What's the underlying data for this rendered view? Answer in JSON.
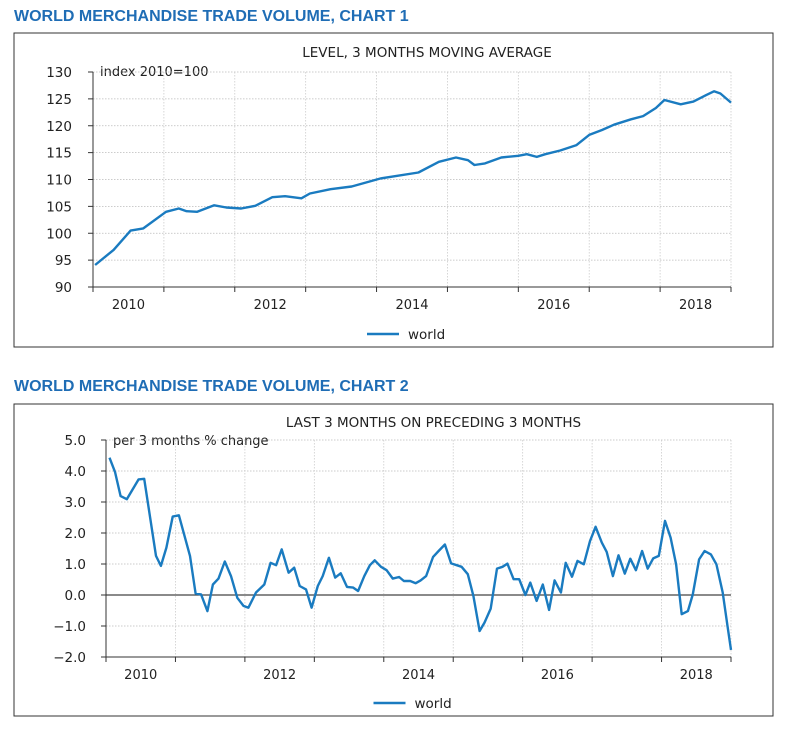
{
  "chart_data": [
    {
      "type": "line",
      "heading": "WORLD MERCHANDISE TRADE VOLUME, CHART 1",
      "title": "LEVEL, 3 MONTHS MOVING AVERAGE",
      "ylabel": "index 2010=100",
      "xlabel": "",
      "xlim": [
        2010,
        2019
      ],
      "ylim": [
        90,
        130
      ],
      "yticks": [
        130,
        125,
        120,
        115,
        110,
        105,
        100,
        95,
        90
      ],
      "ytick_labels": [
        "130",
        "125",
        "120",
        "115",
        "110",
        "105",
        "100",
        "95",
        "90"
      ],
      "xtick_labels": [
        "2010",
        "2012",
        "2014",
        "2016",
        "2018"
      ],
      "grid": true,
      "legend": {
        "position": "bottom-center",
        "entries": [
          "world"
        ]
      },
      "color": "#1a7bc0",
      "series": [
        {
          "name": "world",
          "x": [
            2010.03,
            2010.29,
            2010.53,
            2010.71,
            2011.03,
            2011.21,
            2011.32,
            2011.47,
            2011.71,
            2011.88,
            2012.09,
            2012.29,
            2012.53,
            2012.71,
            2012.94,
            2013.06,
            2013.35,
            2013.65,
            2014.06,
            2014.59,
            2014.88,
            2015.12,
            2015.29,
            2015.38,
            2015.53,
            2015.76,
            2016.0,
            2016.12,
            2016.26,
            2016.38,
            2016.59,
            2016.82,
            2017.0,
            2017.18,
            2017.35,
            2017.59,
            2017.76,
            2017.94,
            2018.06,
            2018.29,
            2018.47,
            2018.65,
            2018.76,
            2018.85,
            2019.0
          ],
          "y": [
            94.1,
            96.9,
            100.5,
            100.9,
            104.0,
            104.6,
            104.1,
            104.0,
            105.2,
            104.8,
            104.6,
            105.1,
            106.7,
            106.9,
            106.5,
            107.4,
            108.2,
            108.7,
            110.2,
            111.3,
            113.3,
            114.1,
            113.6,
            112.7,
            113.0,
            114.1,
            114.4,
            114.7,
            114.2,
            114.7,
            115.4,
            116.4,
            118.3,
            119.2,
            120.2,
            121.2,
            121.8,
            123.3,
            124.8,
            124.0,
            124.5,
            125.7,
            126.4,
            126.0,
            124.3
          ]
        }
      ]
    },
    {
      "type": "line",
      "heading": "WORLD MERCHANDISE TRADE VOLUME, CHART 2",
      "title": "LAST 3 MONTHS ON PRECEDING 3 MONTHS",
      "ylabel": "per 3 months % change",
      "xlabel": "",
      "xlim": [
        2010,
        2019
      ],
      "ylim": [
        -2,
        5
      ],
      "yticks": [
        5,
        4,
        3,
        2,
        1,
        0,
        -1,
        -2
      ],
      "ytick_labels": [
        "5.0",
        "4.0",
        "3.0",
        "2.0",
        "1.0",
        "0.0",
        "−1.0",
        "−2.0"
      ],
      "xtick_labels": [
        "2010",
        "2012",
        "2014",
        "2016",
        "2018"
      ],
      "grid": true,
      "legend": {
        "position": "bottom-center",
        "entries": [
          "world"
        ]
      },
      "color": "#1a7bc0",
      "series": [
        {
          "name": "world",
          "x": [
            2010.05,
            2010.13,
            2010.21,
            2010.3,
            2010.47,
            2010.55,
            2010.72,
            2010.79,
            2010.87,
            2010.96,
            2011.05,
            2011.21,
            2011.29,
            2011.37,
            2011.46,
            2011.54,
            2011.62,
            2011.71,
            2011.8,
            2011.89,
            2011.98,
            2012.05,
            2012.16,
            2012.28,
            2012.37,
            2012.45,
            2012.53,
            2012.63,
            2012.71,
            2012.79,
            2012.88,
            2012.96,
            2013.05,
            2013.12,
            2013.21,
            2013.3,
            2013.38,
            2013.47,
            2013.56,
            2013.63,
            2013.72,
            2013.8,
            2013.87,
            2013.96,
            2014.04,
            2014.13,
            2014.22,
            2014.29,
            2014.38,
            2014.46,
            2014.53,
            2014.61,
            2014.71,
            2014.79,
            2014.88,
            2014.97,
            2015.05,
            2015.12,
            2015.21,
            2015.29,
            2015.38,
            2015.45,
            2015.54,
            2015.63,
            2015.71,
            2015.78,
            2015.87,
            2015.95,
            2016.04,
            2016.11,
            2016.2,
            2016.29,
            2016.38,
            2016.46,
            2016.55,
            2016.62,
            2016.71,
            2016.79,
            2016.88,
            2016.97,
            2017.05,
            2017.14,
            2017.21,
            2017.3,
            2017.38,
            2017.47,
            2017.55,
            2017.63,
            2017.72,
            2017.8,
            2017.88,
            2017.96,
            2018.05,
            2018.13,
            2018.21,
            2018.29,
            2018.38,
            2018.45,
            2018.54,
            2018.62,
            2018.71,
            2018.79,
            2018.88,
            2018.95,
            2019.0
          ],
          "y": [
            4.43,
            3.97,
            3.19,
            3.09,
            3.73,
            3.75,
            1.26,
            0.94,
            1.53,
            2.53,
            2.57,
            1.26,
            0.05,
            0.02,
            -0.52,
            0.34,
            0.53,
            1.08,
            0.61,
            -0.09,
            -0.35,
            -0.41,
            0.08,
            0.34,
            1.04,
            0.96,
            1.47,
            0.72,
            0.88,
            0.29,
            0.18,
            -0.41,
            0.29,
            0.61,
            1.2,
            0.56,
            0.7,
            0.26,
            0.24,
            0.13,
            0.61,
            0.96,
            1.12,
            0.91,
            0.8,
            0.53,
            0.58,
            0.45,
            0.45,
            0.38,
            0.47,
            0.61,
            1.23,
            1.42,
            1.63,
            1.02,
            0.96,
            0.91,
            0.67,
            -0.03,
            -1.16,
            -0.89,
            -0.44,
            0.85,
            0.91,
            1.01,
            0.51,
            0.51,
            0.0,
            0.4,
            -0.19,
            0.34,
            -0.48,
            0.47,
            0.08,
            1.04,
            0.59,
            1.1,
            0.99,
            1.74,
            2.2,
            1.69,
            1.39,
            0.61,
            1.28,
            0.69,
            1.17,
            0.8,
            1.42,
            0.85,
            1.18,
            1.26,
            2.39,
            1.85,
            0.99,
            -0.62,
            -0.52,
            0.02,
            1.15,
            1.42,
            1.31,
            0.99,
            0.08,
            -1.0,
            -1.77
          ]
        }
      ]
    }
  ]
}
